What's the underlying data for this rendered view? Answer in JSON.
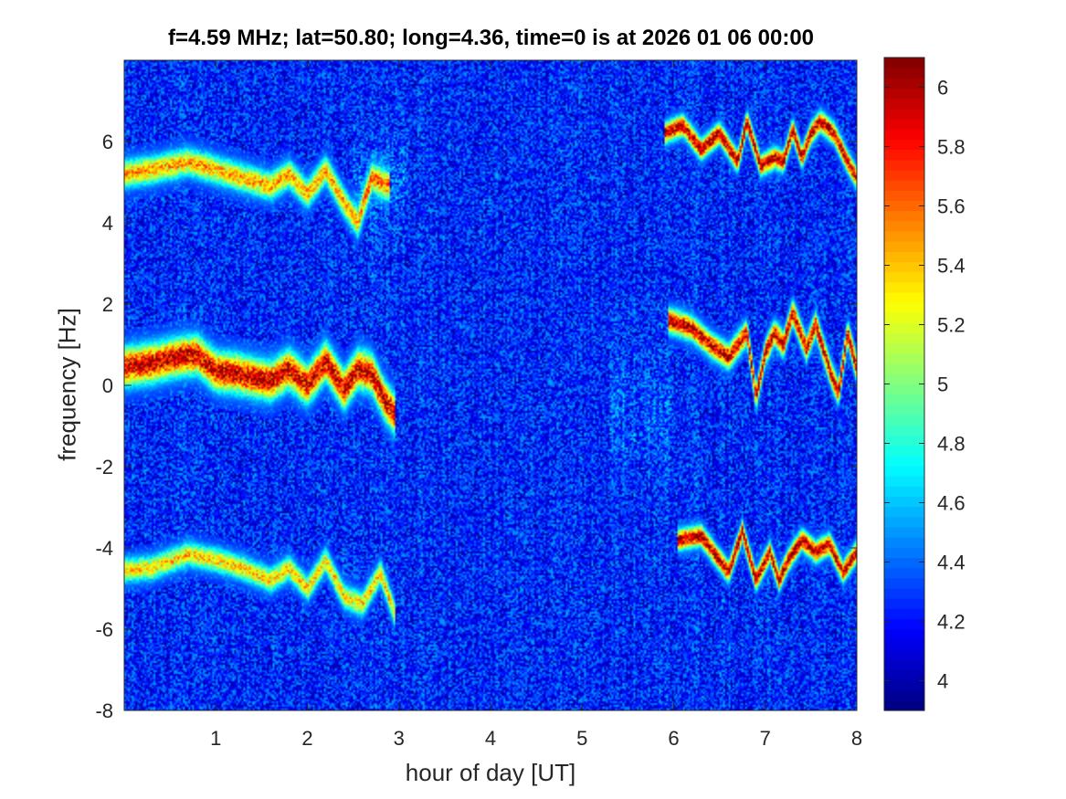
{
  "chart_data": {
    "type": "heatmap",
    "title": "f=4.59 MHz;  lat=50.80; long=4.36, time=0 is at 2026 01 06 00:00",
    "xlabel": "hour of day [UT]",
    "ylabel": "frequency [Hz]",
    "xlim": [
      0,
      8
    ],
    "ylim": [
      -8,
      8
    ],
    "x_ticks": [
      1,
      2,
      3,
      4,
      5,
      6,
      7,
      8
    ],
    "x_tick_labels": [
      "1",
      "2",
      "3",
      "4",
      "5",
      "6",
      "7",
      "8"
    ],
    "y_ticks": [
      -8,
      -6,
      -4,
      -2,
      0,
      2,
      4,
      6
    ],
    "y_tick_labels": [
      "-8",
      "-6",
      "-4",
      "-2",
      "0",
      "2",
      "4",
      "6"
    ],
    "colorbar": {
      "colormap": "jet",
      "clim": [
        3.9,
        6.1
      ],
      "ticks": [
        4,
        4.2,
        4.4,
        4.6,
        4.8,
        5,
        5.2,
        5.4,
        5.6,
        5.8,
        6
      ],
      "tick_labels": [
        "4",
        "4.2",
        "4.4",
        "4.6",
        "4.8",
        "5",
        "5.2",
        "5.4",
        "5.6",
        "5.8",
        "6"
      ]
    },
    "background_level": 4.25,
    "traces": [
      {
        "x_range": [
          0,
          2.95
        ],
        "freq": [
          [
            0,
            0.45
          ],
          [
            0.3,
            0.55
          ],
          [
            0.6,
            0.7
          ],
          [
            0.8,
            0.75
          ],
          [
            1.0,
            0.35
          ],
          [
            1.2,
            0.3
          ],
          [
            1.4,
            0.2
          ],
          [
            1.6,
            0.1
          ],
          [
            1.8,
            0.4
          ],
          [
            2.0,
            0.0
          ],
          [
            2.2,
            0.6
          ],
          [
            2.4,
            -0.1
          ],
          [
            2.55,
            0.4
          ],
          [
            2.7,
            0.3
          ],
          [
            2.85,
            -0.4
          ],
          [
            2.95,
            -0.7
          ]
        ],
        "peak": 6.0,
        "width_hz": 0.55
      },
      {
        "x_range": [
          0,
          2.9
        ],
        "freq": [
          [
            0,
            5.2
          ],
          [
            0.3,
            5.3
          ],
          [
            0.7,
            5.5
          ],
          [
            1.0,
            5.3
          ],
          [
            1.3,
            5.1
          ],
          [
            1.6,
            4.9
          ],
          [
            1.8,
            5.2
          ],
          [
            2.0,
            4.7
          ],
          [
            2.2,
            5.3
          ],
          [
            2.4,
            4.5
          ],
          [
            2.55,
            4.0
          ],
          [
            2.7,
            5.1
          ],
          [
            2.9,
            4.9
          ]
        ],
        "peak": 5.5,
        "width_hz": 0.4
      },
      {
        "x_range": [
          0,
          2.95
        ],
        "freq": [
          [
            0,
            -4.55
          ],
          [
            0.3,
            -4.5
          ],
          [
            0.7,
            -4.15
          ],
          [
            1.0,
            -4.3
          ],
          [
            1.3,
            -4.5
          ],
          [
            1.6,
            -4.8
          ],
          [
            1.8,
            -4.5
          ],
          [
            2.0,
            -5.0
          ],
          [
            2.2,
            -4.3
          ],
          [
            2.4,
            -5.2
          ],
          [
            2.6,
            -5.4
          ],
          [
            2.8,
            -4.6
          ],
          [
            2.95,
            -5.6
          ]
        ],
        "peak": 5.4,
        "width_hz": 0.35
      },
      {
        "x_range": [
          5.9,
          8.0
        ],
        "freq": [
          [
            5.9,
            6.2
          ],
          [
            6.1,
            6.4
          ],
          [
            6.3,
            5.8
          ],
          [
            6.5,
            6.2
          ],
          [
            6.7,
            5.5
          ],
          [
            6.8,
            6.5
          ],
          [
            6.95,
            5.4
          ],
          [
            7.1,
            5.6
          ],
          [
            7.2,
            5.5
          ],
          [
            7.3,
            6.3
          ],
          [
            7.4,
            5.6
          ],
          [
            7.5,
            6.2
          ],
          [
            7.6,
            6.5
          ],
          [
            7.75,
            6.2
          ],
          [
            7.9,
            5.5
          ],
          [
            8.0,
            5.1
          ]
        ],
        "peak": 6.05,
        "width_hz": 0.3
      },
      {
        "x_range": [
          5.95,
          8.0
        ],
        "freq": [
          [
            5.95,
            1.6
          ],
          [
            6.2,
            1.4
          ],
          [
            6.4,
            1.0
          ],
          [
            6.6,
            0.7
          ],
          [
            6.8,
            1.3
          ],
          [
            6.9,
            -0.3
          ],
          [
            7.0,
            0.8
          ],
          [
            7.1,
            1.3
          ],
          [
            7.2,
            1.0
          ],
          [
            7.3,
            1.8
          ],
          [
            7.45,
            0.9
          ],
          [
            7.55,
            1.5
          ],
          [
            7.7,
            0.4
          ],
          [
            7.8,
            -0.2
          ],
          [
            7.9,
            1.3
          ],
          [
            8.0,
            0.4
          ]
        ],
        "peak": 6.0,
        "width_hz": 0.35
      },
      {
        "x_range": [
          6.05,
          8.0
        ],
        "freq": [
          [
            6.05,
            -3.8
          ],
          [
            6.3,
            -3.7
          ],
          [
            6.5,
            -4.3
          ],
          [
            6.6,
            -4.6
          ],
          [
            6.75,
            -3.6
          ],
          [
            6.9,
            -4.8
          ],
          [
            7.05,
            -4.1
          ],
          [
            7.15,
            -4.8
          ],
          [
            7.25,
            -4.3
          ],
          [
            7.4,
            -3.8
          ],
          [
            7.55,
            -4.1
          ],
          [
            7.7,
            -3.9
          ],
          [
            7.85,
            -4.6
          ],
          [
            8.0,
            -4.1
          ]
        ],
        "peak": 6.05,
        "width_hz": 0.3
      }
    ],
    "diffuse_patches": [
      {
        "x_range": [
          5.3,
          6.0
        ],
        "freq_center": -0.6,
        "width_hz": 1.5,
        "level": 4.45
      },
      {
        "x_range": [
          2.5,
          3.1
        ],
        "freq_center": 5.0,
        "width_hz": 1.0,
        "level": 4.55
      }
    ]
  }
}
